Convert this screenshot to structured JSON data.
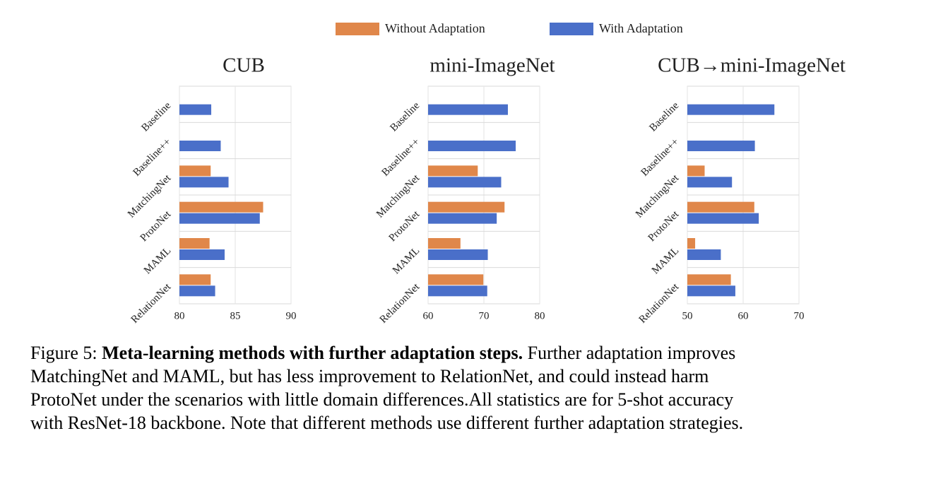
{
  "chart_data": [
    {
      "type": "bar",
      "orientation": "horizontal",
      "title": "CUB",
      "categories": [
        "Baseline",
        "Baseline++",
        "MatchingNet",
        "ProtoNet",
        "MAML",
        "RelationNet"
      ],
      "series": [
        {
          "name": "Without Adaptation",
          "color": "#e0874a",
          "values": [
            null,
            null,
            82.8,
            87.5,
            82.7,
            82.8
          ]
        },
        {
          "name": "With Adaptation",
          "color": "#4a6fc9",
          "values": [
            82.85,
            83.7,
            84.4,
            87.2,
            84.05,
            83.2
          ]
        }
      ],
      "xlim": [
        80,
        90
      ],
      "xticks": [
        80,
        85,
        90
      ],
      "grid": true
    },
    {
      "type": "bar",
      "orientation": "horizontal",
      "title": "mini-ImageNet",
      "categories": [
        "Baseline",
        "Baseline++",
        "MatchingNet",
        "ProtoNet",
        "MAML",
        "RelationNet"
      ],
      "series": [
        {
          "name": "Without Adaptation",
          "color": "#e0874a",
          "values": [
            null,
            null,
            68.9,
            73.7,
            65.8,
            69.9
          ]
        },
        {
          "name": "With Adaptation",
          "color": "#4a6fc9",
          "values": [
            74.3,
            75.7,
            73.1,
            72.3,
            70.7,
            70.6
          ]
        }
      ],
      "xlim": [
        60,
        80
      ],
      "xticks": [
        60,
        70,
        80
      ],
      "grid": true
    },
    {
      "type": "bar",
      "orientation": "horizontal",
      "title": "CUB→mini-ImageNet",
      "categories": [
        "Baseline",
        "Baseline++",
        "MatchingNet",
        "ProtoNet",
        "MAML",
        "RelationNet"
      ],
      "series": [
        {
          "name": "Without Adaptation",
          "color": "#e0874a",
          "values": [
            null,
            null,
            53.1,
            62.0,
            51.4,
            57.8
          ]
        },
        {
          "name": "With Adaptation",
          "color": "#4a6fc9",
          "values": [
            65.6,
            62.1,
            58.0,
            62.8,
            56.0,
            58.6
          ]
        }
      ],
      "xlim": [
        50,
        70
      ],
      "xticks": [
        50,
        60,
        70
      ],
      "grid": true
    }
  ],
  "caption": {
    "label": "Figure 5:",
    "heading": "Meta-learning methods with further adaptation steps.",
    "lines": [
      "Further adaptation improves",
      "MatchingNet and MAML, but has less improvement to RelationNet, and could instead harm",
      "ProtoNet under the scenarios with little domain differences.All statistics are for 5-shot accuracy",
      "with ResNet-18 backbone. Note that different methods use different further adaptation strategies."
    ]
  }
}
